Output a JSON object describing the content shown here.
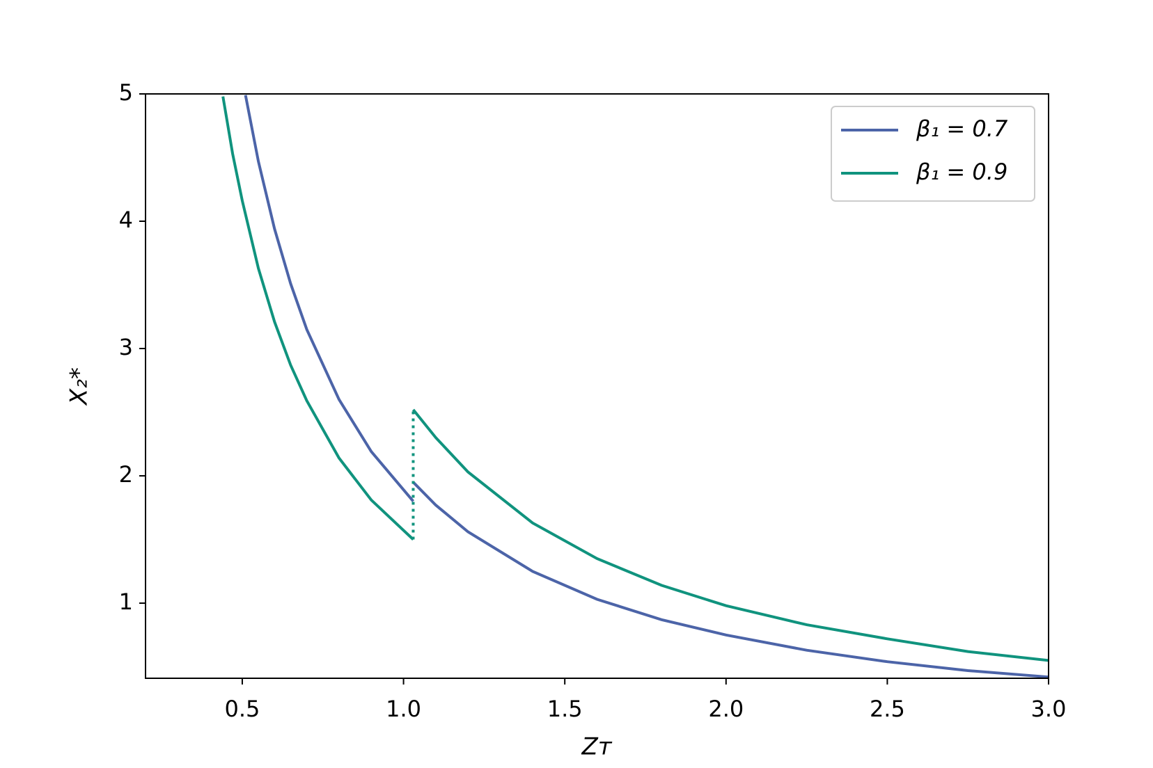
{
  "chart_data": {
    "type": "line",
    "x_label": "Zᴛ",
    "y_label": "X₂*",
    "xlim": [
      0.2,
      3.0
    ],
    "xticks": [
      0.5,
      {
        "value": 1.0,
        "label": "1.0"
      },
      1.5,
      {
        "value": 2.0,
        "label": "2.0"
      },
      2.5,
      {
        "value": 3.0,
        "label": "3.0"
      }
    ],
    "ylim": [
      0.41,
      5
    ],
    "yticks": [
      1,
      2,
      3,
      4,
      5
    ],
    "legend": "upper right",
    "series": [
      {
        "name": "β₁ = 0.7",
        "color": "#4c64a8",
        "x": [
          0.51,
          0.55,
          0.6,
          0.65,
          0.7,
          0.8,
          0.9,
          1.03,
          null,
          1.03,
          1.1,
          1.2,
          1.4,
          1.6,
          1.8,
          2.0,
          2.25,
          2.5,
          2.75,
          3.0
        ],
        "values": [
          4.99,
          4.47,
          3.94,
          3.51,
          3.15,
          2.6,
          2.19,
          1.8,
          null,
          1.95,
          1.77,
          1.56,
          1.25,
          1.03,
          0.87,
          0.75,
          0.63,
          0.54,
          0.47,
          0.42
        ]
      },
      {
        "name": "β₁ = 0.9",
        "color": "#10937e",
        "x": [
          0.44,
          0.47,
          0.5,
          0.55,
          0.6,
          0.65,
          0.7,
          0.8,
          0.9,
          1.03,
          null,
          1.03,
          1.1,
          1.2,
          1.4,
          1.6,
          1.8,
          2.0,
          2.25,
          2.5,
          2.75,
          3.0
        ],
        "values": [
          4.98,
          4.53,
          4.16,
          3.63,
          3.21,
          2.87,
          2.59,
          2.14,
          1.81,
          1.5,
          null,
          2.52,
          2.3,
          2.03,
          1.63,
          1.35,
          1.14,
          0.98,
          0.83,
          0.72,
          0.62,
          0.55
        ]
      }
    ],
    "vlines": [
      {
        "x": 1.03,
        "y": [
          1.5,
          2.52
        ],
        "color": "#10937e",
        "dash": "dotted"
      }
    ]
  }
}
